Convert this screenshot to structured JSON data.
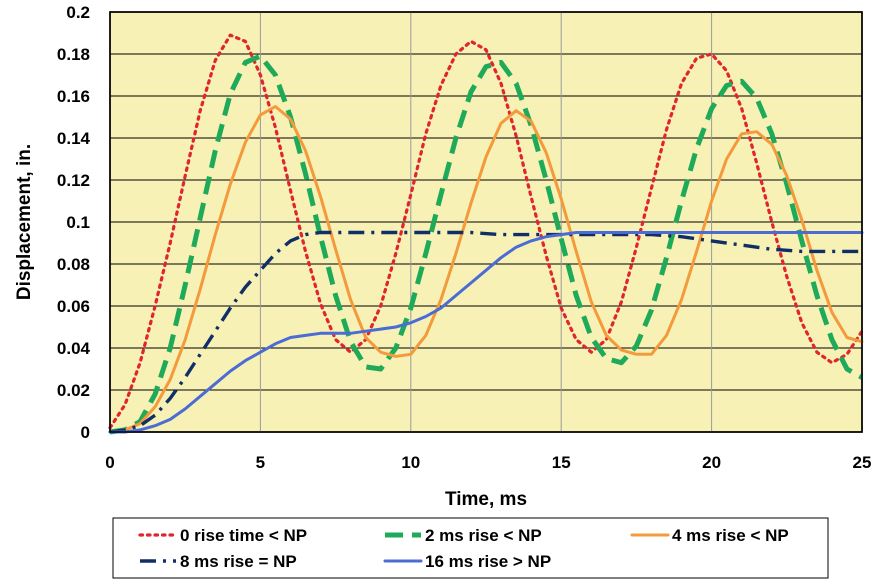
{
  "chart_data": {
    "type": "line",
    "title": "",
    "xlabel": "Time, ms",
    "ylabel": "Displacement, in.",
    "xlim": [
      0,
      25
    ],
    "ylim": [
      0,
      0.2
    ],
    "x_ticks": [
      0,
      5,
      10,
      15,
      20,
      25
    ],
    "x_tick_labels": [
      "0",
      "5",
      "10",
      "15",
      "20",
      "25"
    ],
    "y_ticks": [
      0,
      0.02,
      0.04,
      0.06,
      0.08,
      0.1,
      0.12,
      0.14,
      0.16,
      0.18,
      0.2
    ],
    "y_tick_labels": [
      "0",
      "0.02",
      "0.04",
      "0.06",
      "0.08",
      "0.1",
      "0.12",
      "0.14",
      "0.16",
      "0.18",
      "0.2"
    ],
    "grid": true,
    "legend_position": "bottom",
    "plot_background": "#f7f1b5",
    "series": [
      {
        "name": "0 rise time < NP",
        "color": "#e0252f",
        "style": "dotted",
        "x": [
          0,
          0.5,
          1,
          1.5,
          2,
          2.5,
          3,
          3.5,
          4,
          4.5,
          5,
          5.5,
          6,
          6.5,
          7,
          7.5,
          8,
          8.5,
          9,
          9.5,
          10,
          10.5,
          11,
          11.5,
          12,
          12.5,
          13,
          13.5,
          14,
          14.5,
          15,
          15.5,
          16,
          16.5,
          17,
          17.5,
          18,
          18.5,
          19,
          19.5,
          20,
          20.5,
          21,
          21.5,
          22,
          22.5,
          23,
          23.5,
          24,
          24.5,
          25
        ],
        "y": [
          0.002,
          0.013,
          0.033,
          0.06,
          0.09,
          0.122,
          0.153,
          0.177,
          0.189,
          0.186,
          0.17,
          0.145,
          0.115,
          0.086,
          0.061,
          0.044,
          0.038,
          0.044,
          0.06,
          0.085,
          0.113,
          0.142,
          0.165,
          0.18,
          0.186,
          0.182,
          0.166,
          0.141,
          0.112,
          0.084,
          0.059,
          0.044,
          0.038,
          0.044,
          0.062,
          0.088,
          0.116,
          0.144,
          0.166,
          0.178,
          0.18,
          0.172,
          0.154,
          0.128,
          0.1,
          0.074,
          0.052,
          0.038,
          0.033,
          0.037,
          0.048
        ]
      },
      {
        "name": "2 ms rise < NP",
        "color": "#1faa5a",
        "style": "dashed",
        "x": [
          0,
          0.5,
          1,
          1.5,
          2,
          2.5,
          3,
          3.5,
          4,
          4.5,
          5,
          5.5,
          6,
          6.5,
          7,
          7.5,
          8,
          8.5,
          9,
          9.5,
          10,
          10.5,
          11,
          11.5,
          12,
          12.5,
          13,
          13.5,
          14,
          14.5,
          15,
          15.5,
          16,
          16.5,
          17,
          17.5,
          18,
          18.5,
          19,
          19.5,
          20,
          20.5,
          21,
          21.5,
          22,
          22.5,
          23,
          23.5,
          24,
          24.5,
          25
        ],
        "y": [
          0,
          0.001,
          0.005,
          0.018,
          0.04,
          0.07,
          0.102,
          0.134,
          0.161,
          0.176,
          0.179,
          0.17,
          0.15,
          0.123,
          0.093,
          0.065,
          0.043,
          0.031,
          0.03,
          0.04,
          0.059,
          0.085,
          0.113,
          0.14,
          0.162,
          0.174,
          0.176,
          0.166,
          0.146,
          0.12,
          0.092,
          0.065,
          0.045,
          0.035,
          0.033,
          0.041,
          0.058,
          0.083,
          0.11,
          0.135,
          0.154,
          0.165,
          0.167,
          0.159,
          0.142,
          0.118,
          0.091,
          0.065,
          0.044,
          0.03,
          0.026
        ]
      },
      {
        "name": "4 ms rise < NP",
        "color": "#f39a3c",
        "style": "solid",
        "x": [
          0,
          0.5,
          1,
          1.5,
          2,
          2.5,
          3,
          3.5,
          4,
          4.5,
          5,
          5.5,
          6,
          6.5,
          7,
          7.5,
          8,
          8.5,
          9,
          9.5,
          10,
          10.5,
          11,
          11.5,
          12,
          12.5,
          13,
          13.5,
          14,
          14.5,
          15,
          15.5,
          16,
          16.5,
          17,
          17.5,
          18,
          18.5,
          19,
          19.5,
          20,
          20.5,
          21,
          21.5,
          22,
          22.5,
          23,
          23.5,
          24,
          24.5,
          25
        ],
        "y": [
          0,
          0.001,
          0.004,
          0.012,
          0.025,
          0.044,
          0.068,
          0.094,
          0.118,
          0.138,
          0.151,
          0.155,
          0.149,
          0.134,
          0.112,
          0.087,
          0.063,
          0.045,
          0.038,
          0.036,
          0.037,
          0.046,
          0.063,
          0.085,
          0.109,
          0.131,
          0.147,
          0.153,
          0.148,
          0.133,
          0.111,
          0.086,
          0.062,
          0.046,
          0.039,
          0.037,
          0.037,
          0.046,
          0.063,
          0.086,
          0.11,
          0.13,
          0.142,
          0.143,
          0.137,
          0.122,
          0.101,
          0.077,
          0.057,
          0.045,
          0.043
        ]
      },
      {
        "name": "8 ms rise = NP",
        "color": "#0f2f66",
        "style": "dashdot",
        "x": [
          0,
          0.5,
          1,
          1.5,
          2,
          2.5,
          3,
          3.5,
          4,
          4.5,
          5,
          5.5,
          6,
          6.5,
          7,
          7.5,
          8,
          8.5,
          9,
          10,
          11,
          12,
          13,
          14,
          15,
          16,
          17,
          18,
          19,
          20,
          21,
          22,
          23,
          24,
          25
        ],
        "y": [
          0,
          0.001,
          0.003,
          0.008,
          0.016,
          0.026,
          0.037,
          0.048,
          0.059,
          0.069,
          0.077,
          0.085,
          0.091,
          0.094,
          0.095,
          0.095,
          0.095,
          0.095,
          0.095,
          0.095,
          0.095,
          0.095,
          0.094,
          0.094,
          0.094,
          0.094,
          0.094,
          0.094,
          0.093,
          0.091,
          0.089,
          0.087,
          0.086,
          0.086,
          0.086
        ]
      },
      {
        "name": "16 ms rise > NP",
        "color": "#4a6cd4",
        "style": "solid",
        "x": [
          0,
          0.5,
          1,
          1.5,
          2,
          2.5,
          3,
          3.5,
          4,
          4.5,
          5,
          5.5,
          6,
          6.5,
          7,
          7.5,
          8,
          8.5,
          9,
          9.5,
          10,
          10.5,
          11,
          11.5,
          12,
          12.5,
          13,
          13.5,
          14,
          14.5,
          15,
          15.5,
          16,
          17,
          18,
          19,
          20,
          21,
          22,
          23,
          24,
          25
        ],
        "y": [
          0,
          0,
          0.001,
          0.003,
          0.006,
          0.011,
          0.017,
          0.023,
          0.029,
          0.034,
          0.038,
          0.042,
          0.045,
          0.046,
          0.047,
          0.047,
          0.047,
          0.048,
          0.049,
          0.05,
          0.052,
          0.055,
          0.059,
          0.065,
          0.071,
          0.077,
          0.083,
          0.088,
          0.091,
          0.093,
          0.094,
          0.095,
          0.095,
          0.095,
          0.095,
          0.095,
          0.095,
          0.095,
          0.095,
          0.095,
          0.095,
          0.095
        ]
      }
    ]
  }
}
